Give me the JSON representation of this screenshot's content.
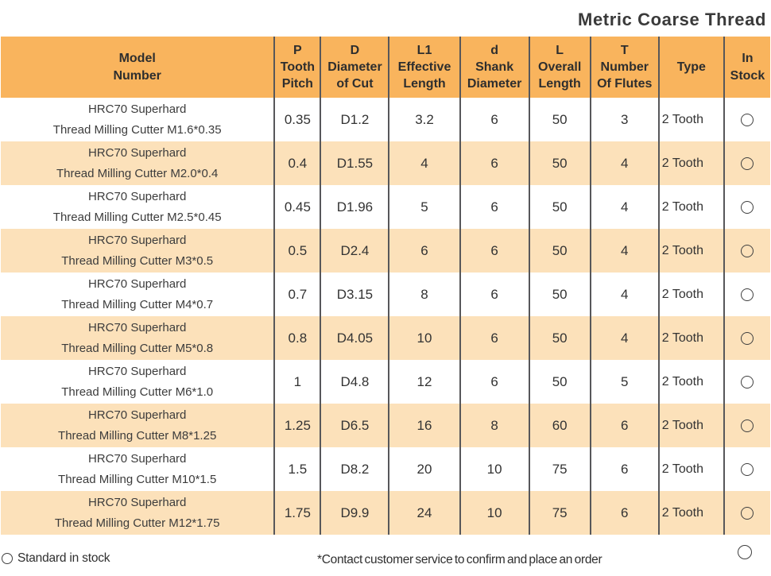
{
  "title": "Metric Coarse Thread",
  "colors": {
    "header_bg": "#f9b45d",
    "stripe_bg": "#fce1ba",
    "border": "#57575a",
    "text": "#333333"
  },
  "icons": {
    "in_stock_circle": "circle-outline"
  },
  "table": {
    "columns": [
      {
        "id": "model",
        "label_lines": [
          "Model",
          "Number"
        ]
      },
      {
        "id": "pitch",
        "label_lines": [
          "P",
          "Tooth",
          "Pitch"
        ]
      },
      {
        "id": "diameter",
        "label_lines": [
          "D",
          "Diameter",
          "of Cut"
        ]
      },
      {
        "id": "l1",
        "label_lines": [
          "L1",
          "Effective",
          "Length"
        ]
      },
      {
        "id": "shank",
        "label_lines": [
          "d",
          "Shank",
          "Diameter"
        ]
      },
      {
        "id": "overall",
        "label_lines": [
          "L",
          "Overall",
          "Length"
        ]
      },
      {
        "id": "flutes",
        "label_lines": [
          "T",
          "Number",
          "Of Flutes"
        ]
      },
      {
        "id": "type",
        "label_lines": [
          "Type"
        ]
      },
      {
        "id": "stock",
        "label_lines": [
          "In",
          "Stock"
        ]
      }
    ],
    "rows": [
      {
        "model_line1": "HRC70 Superhard",
        "model_line2": "Thread Milling Cutter M1.6*0.35",
        "pitch": "0.35",
        "diameter": "D1.2",
        "l1": "3.2",
        "shank": "6",
        "overall": "50",
        "flutes": "3",
        "type": "2 Tooth",
        "stock": "circle"
      },
      {
        "model_line1": "HRC70 Superhard",
        "model_line2": "Thread Milling Cutter M2.0*0.4",
        "pitch": "0.4",
        "diameter": "D1.55",
        "l1": "4",
        "shank": "6",
        "overall": "50",
        "flutes": "4",
        "type": "2 Tooth",
        "stock": "circle"
      },
      {
        "model_line1": "HRC70 Superhard",
        "model_line2": "Thread Milling Cutter M2.5*0.45",
        "pitch": "0.45",
        "diameter": "D1.96",
        "l1": "5",
        "shank": "6",
        "overall": "50",
        "flutes": "4",
        "type": "2 Tooth",
        "stock": "circle"
      },
      {
        "model_line1": "HRC70 Superhard",
        "model_line2": "Thread Milling Cutter M3*0.5",
        "pitch": "0.5",
        "diameter": "D2.4",
        "l1": "6",
        "shank": "6",
        "overall": "50",
        "flutes": "4",
        "type": "2 Tooth",
        "stock": "circle"
      },
      {
        "model_line1": "HRC70 Superhard",
        "model_line2": "Thread Milling Cutter M4*0.7",
        "pitch": "0.7",
        "diameter": "D3.15",
        "l1": "8",
        "shank": "6",
        "overall": "50",
        "flutes": "4",
        "type": "2 Tooth",
        "stock": "circle"
      },
      {
        "model_line1": "HRC70 Superhard",
        "model_line2": "Thread Milling Cutter M5*0.8",
        "pitch": "0.8",
        "diameter": "D4.05",
        "l1": "10",
        "shank": "6",
        "overall": "50",
        "flutes": "4",
        "type": "2 Tooth",
        "stock": "circle"
      },
      {
        "model_line1": "HRC70 Superhard",
        "model_line2": "Thread Milling Cutter M6*1.0",
        "pitch": "1",
        "diameter": "D4.8",
        "l1": "12",
        "shank": "6",
        "overall": "50",
        "flutes": "5",
        "type": "2 Tooth",
        "stock": "circle"
      },
      {
        "model_line1": "HRC70 Superhard",
        "model_line2": "Thread Milling Cutter M8*1.25",
        "pitch": "1.25",
        "diameter": "D6.5",
        "l1": "16",
        "shank": "8",
        "overall": "60",
        "flutes": "6",
        "type": "2 Tooth",
        "stock": "circle"
      },
      {
        "model_line1": "HRC70 Superhard",
        "model_line2": "Thread Milling Cutter M10*1.5",
        "pitch": "1.5",
        "diameter": "D8.2",
        "l1": "20",
        "shank": "10",
        "overall": "75",
        "flutes": "6",
        "type": "2 Tooth",
        "stock": "circle"
      },
      {
        "model_line1": "HRC70 Superhard",
        "model_line2": "Thread Milling Cutter M12*1.75",
        "pitch": "1.75",
        "diameter": "D9.9",
        "l1": "24",
        "shank": "10",
        "overall": "75",
        "flutes": "6",
        "type": "2 Tooth",
        "stock": "circle"
      }
    ]
  },
  "footer": {
    "legend_label": "Standard in stock",
    "note": "*Contact customer service to confirm and place an order"
  }
}
